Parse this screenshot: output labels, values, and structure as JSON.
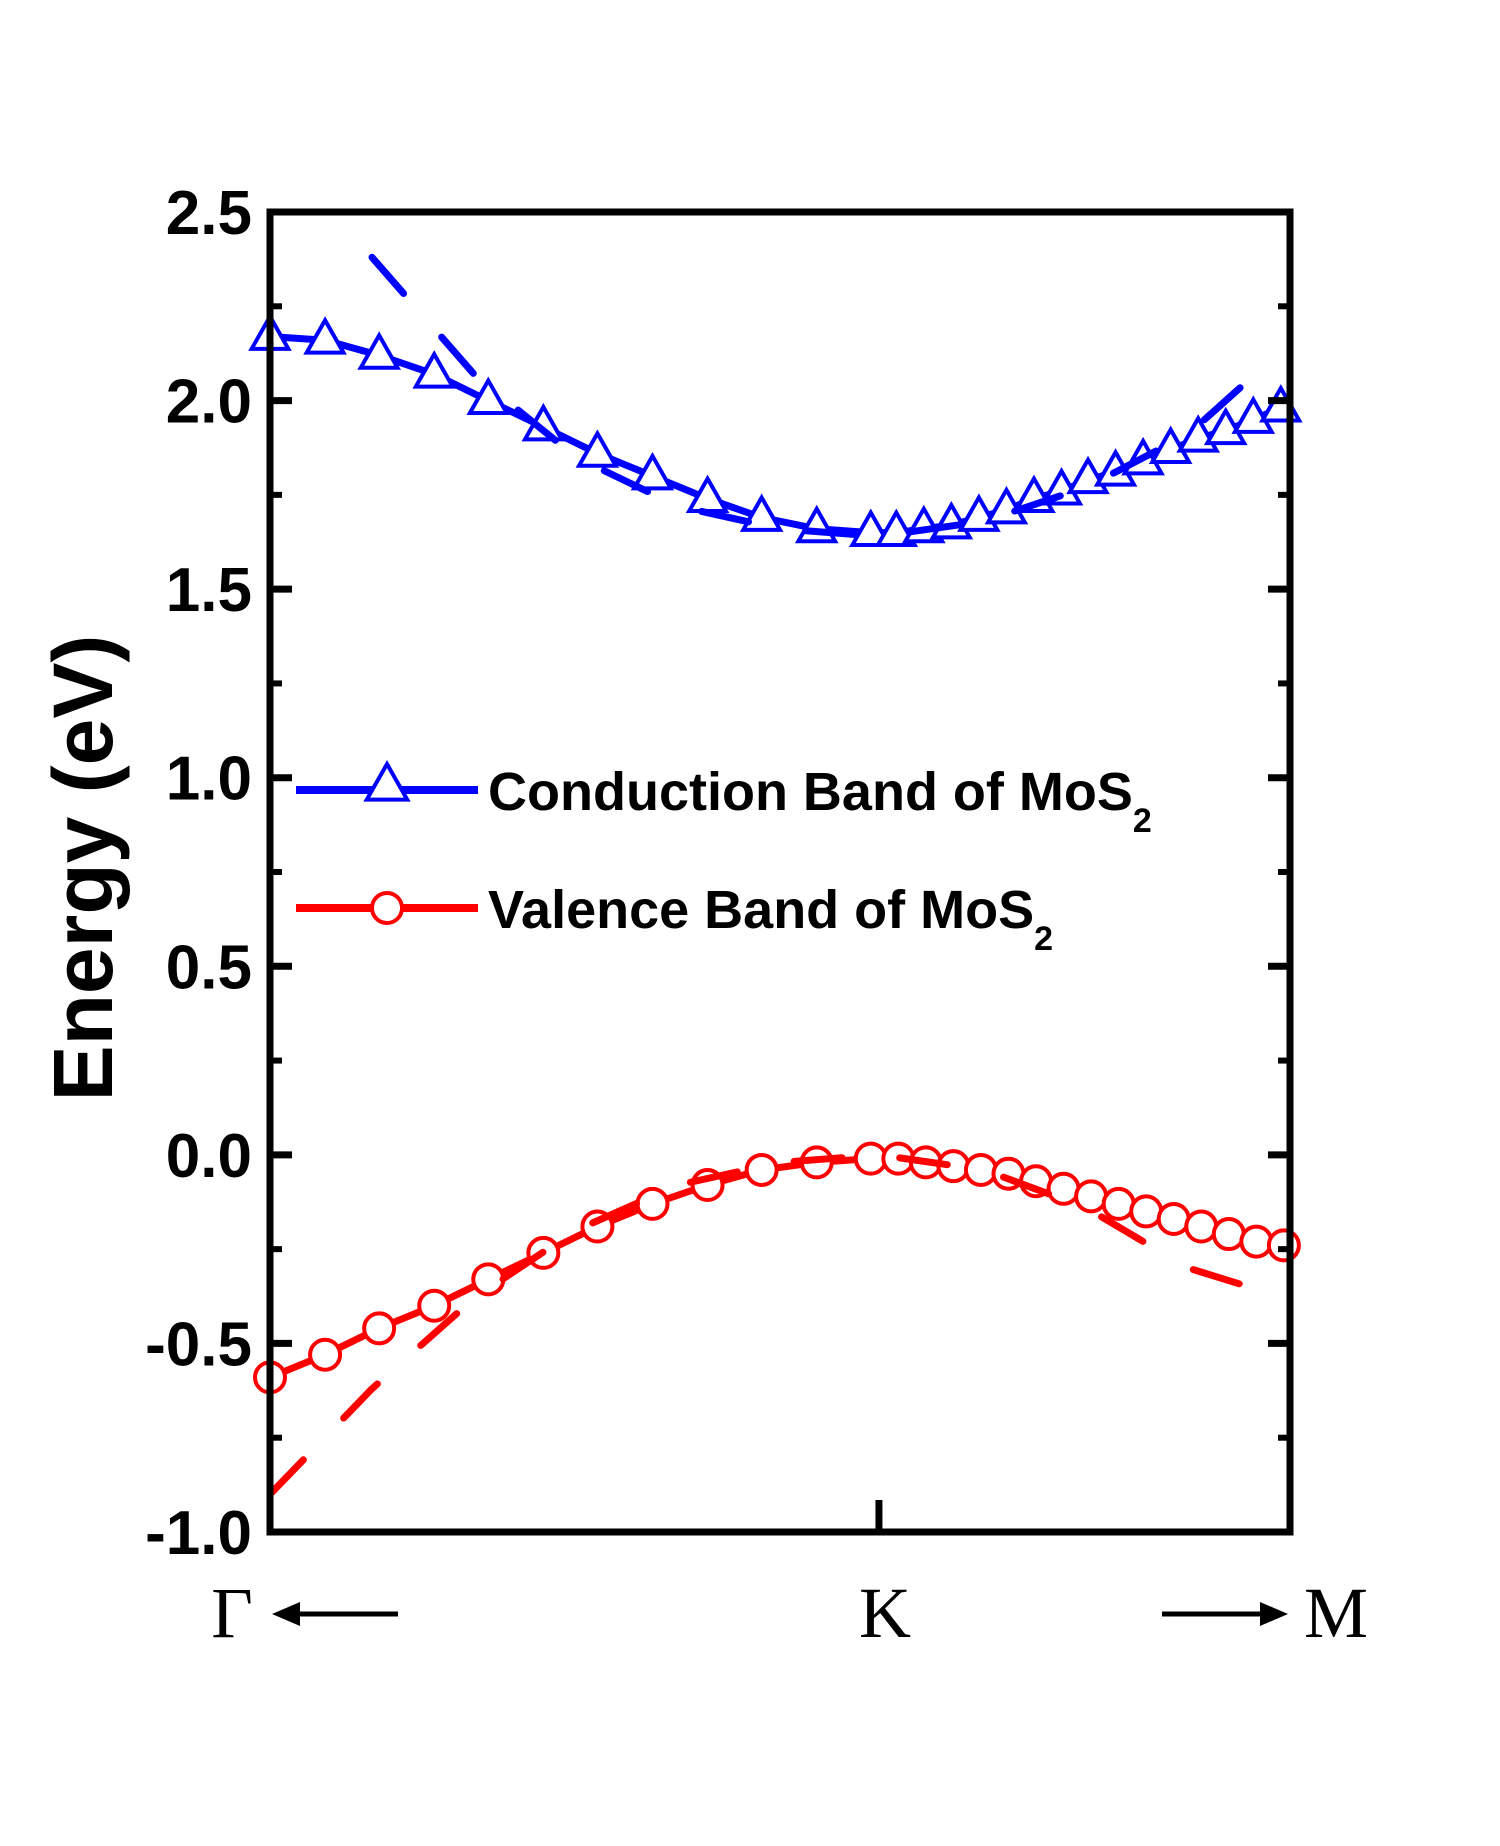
{
  "chart_data": {
    "type": "line",
    "title": "",
    "ylabel": "Energy (eV)",
    "xlabel": "",
    "xlim": [
      0,
      1
    ],
    "ylim": [
      -1.0,
      2.5
    ],
    "yticks": [
      "2.5",
      "2.0",
      "1.5",
      "1.0",
      "0.5",
      "0.0",
      "-0.5",
      "-1.0"
    ],
    "ytick_values": [
      2.5,
      2.0,
      1.5,
      1.0,
      0.5,
      0.0,
      -0.5,
      -1.0
    ],
    "k_points": {
      "gamma": {
        "label": "Γ",
        "x": 0.0
      },
      "k": {
        "label": "K",
        "x": 0.597
      },
      "m": {
        "label": "M",
        "x": 1.0
      }
    },
    "grid": false,
    "legend_position": "middle-left",
    "legend": [
      {
        "name_main": "Conduction Band of MoS",
        "name_sub": "2",
        "color": "#0000ff",
        "marker": "triangle"
      },
      {
        "name_main": "Valence Band of MoS",
        "name_sub": "2",
        "color": "#ff0000",
        "marker": "circle"
      }
    ],
    "series": [
      {
        "name": "Conduction Band of MoS2",
        "color": "#0000ff",
        "style": "solid",
        "marker": "triangle",
        "x": [
          0.0,
          0.054,
          0.107,
          0.161,
          0.214,
          0.268,
          0.321,
          0.375,
          0.429,
          0.482,
          0.536,
          0.589,
          0.614,
          0.641,
          0.668,
          0.695,
          0.722,
          0.749,
          0.776,
          0.802,
          0.829,
          0.856,
          0.883,
          0.91,
          0.937,
          0.964,
          0.991
        ],
        "values": [
          2.17,
          2.16,
          2.12,
          2.07,
          2.0,
          1.93,
          1.86,
          1.8,
          1.74,
          1.69,
          1.66,
          1.65,
          1.65,
          1.66,
          1.67,
          1.69,
          1.71,
          1.74,
          1.76,
          1.79,
          1.81,
          1.84,
          1.87,
          1.9,
          1.92,
          1.95,
          1.98
        ]
      },
      {
        "name": "Valence Band of MoS2",
        "color": "#ff0000",
        "style": "solid",
        "marker": "circle",
        "x": [
          0.0,
          0.054,
          0.107,
          0.161,
          0.214,
          0.268,
          0.321,
          0.375,
          0.429,
          0.482,
          0.536,
          0.589,
          0.616,
          0.643,
          0.67,
          0.697,
          0.724,
          0.751,
          0.778,
          0.805,
          0.832,
          0.859,
          0.886,
          0.913,
          0.94,
          0.967,
          0.994
        ],
        "values": [
          -0.59,
          -0.53,
          -0.46,
          -0.4,
          -0.33,
          -0.26,
          -0.19,
          -0.13,
          -0.08,
          -0.04,
          -0.02,
          -0.01,
          -0.01,
          -0.02,
          -0.03,
          -0.04,
          -0.05,
          -0.07,
          -0.09,
          -0.11,
          -0.13,
          -0.15,
          -0.17,
          -0.19,
          -0.21,
          -0.23,
          -0.24
        ]
      },
      {
        "name": "Conduction Band (dashed)",
        "color": "#0000ff",
        "style": "dashed",
        "marker": "none",
        "x": [
          0.1,
          0.2,
          0.3,
          0.4,
          0.5,
          0.597,
          0.7,
          0.8,
          0.9,
          0.97
        ],
        "values": [
          2.38,
          2.07,
          1.85,
          1.72,
          1.66,
          1.64,
          1.68,
          1.77,
          1.91,
          2.08
        ]
      },
      {
        "name": "Valence Band (dashed)",
        "color": "#ff0000",
        "style": "dashed",
        "marker": "none",
        "x": [
          0.0,
          0.1,
          0.2,
          0.3,
          0.4,
          0.5,
          0.597,
          0.7,
          0.8,
          0.9,
          0.96
        ],
        "values": [
          -0.9,
          -0.62,
          -0.38,
          -0.2,
          -0.08,
          -0.02,
          0.0,
          -0.04,
          -0.14,
          -0.3,
          -0.35
        ]
      }
    ]
  }
}
